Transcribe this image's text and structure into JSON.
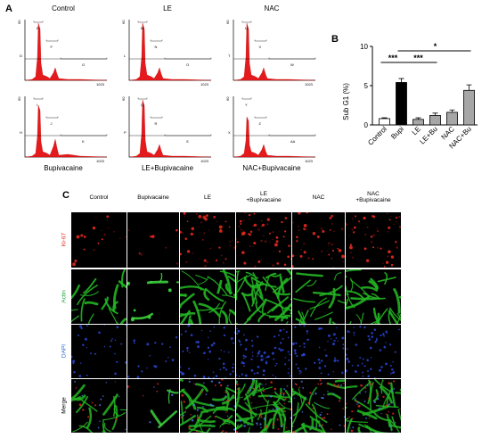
{
  "panel_a": {
    "letter": "A",
    "plots": [
      {
        "title": "Control",
        "gates": [
          "E",
          "F",
          "G",
          "D"
        ],
        "y_max": "60",
        "x_max": "1023"
      },
      {
        "title": "LE",
        "gates": [
          "M",
          "N",
          "O",
          "L"
        ],
        "y_max": "60",
        "x_max": "1023"
      },
      {
        "title": "NAC",
        "gates": [
          "U",
          "V",
          "W",
          "T"
        ],
        "y_max": "60",
        "x_max": "1023"
      },
      {
        "title": "Bupivacaine",
        "gates": [
          "I",
          "J",
          "K",
          "H"
        ],
        "y_max": "60",
        "x_max": "1023"
      },
      {
        "title": "LE+Bupivacaine",
        "gates": [
          "Q",
          "R",
          "S",
          "P"
        ],
        "y_max": "60",
        "x_max": "1023"
      },
      {
        "title": "NAC+Bupivacaine",
        "gates": [
          "Y",
          "Z",
          "AA",
          "X"
        ],
        "y_max": "60",
        "x_max": "1023"
      }
    ]
  },
  "panel_b": {
    "letter": "B",
    "significance": [
      "***",
      "***",
      "*"
    ]
  },
  "chart_data": {
    "type": "bar",
    "categories": [
      "Control",
      "Bupi",
      "LE",
      "LE+Bu",
      "NAC",
      "NAC+Bu"
    ],
    "values": [
      0.8,
      5.4,
      0.7,
      1.2,
      1.6,
      4.4
    ],
    "errors": [
      0.1,
      0.5,
      0.2,
      0.3,
      0.3,
      0.7
    ],
    "bar_colors": [
      "#ffffff",
      "#000000",
      "#a6a6a6",
      "#a6a6a6",
      "#a6a6a6",
      "#a6a6a6"
    ],
    "ylabel": "Sub G1 (%)",
    "ylim": [
      0,
      10
    ],
    "yticks": [
      "0",
      "5",
      "10"
    ]
  },
  "panel_c": {
    "letter": "C",
    "column_headers": [
      [
        "Control"
      ],
      [
        "Bupivacaine"
      ],
      [
        "LE"
      ],
      [
        "LE",
        "+Bupivacaine"
      ],
      [
        "NAC"
      ],
      [
        "NAC",
        "+Bupivacaine"
      ]
    ],
    "row_labels": [
      "Ki-67",
      "Actin",
      "DAPI",
      "Merge"
    ],
    "row_label_colors": [
      "#e8241c",
      "#1fa83a",
      "#2d6fd6",
      "#000000"
    ]
  }
}
